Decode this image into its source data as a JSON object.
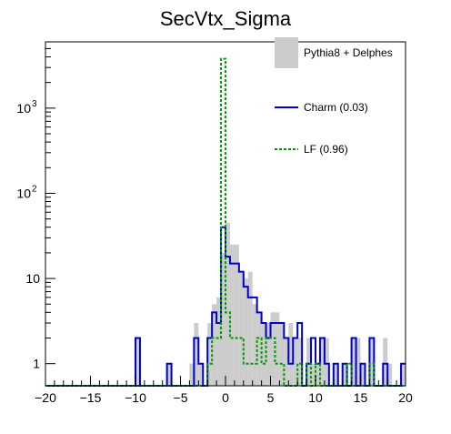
{
  "chart_data": {
    "type": "histogram",
    "title": "SecVtx_Sigma",
    "xlabel": "",
    "ylabel": "",
    "xlim": [
      -20,
      20
    ],
    "ylim": [
      0.55,
      6000
    ],
    "y_scale": "log",
    "x_ticks": [
      "−20",
      "−15",
      "−10",
      "−5",
      "0",
      "5",
      "10",
      "15",
      "20"
    ],
    "x_tick_values": [
      -20,
      -15,
      -10,
      -5,
      0,
      5,
      10,
      15,
      20
    ],
    "y_tick_values": [
      1,
      10,
      100,
      1000
    ],
    "y_tick_labels": [
      {
        "base": "1",
        "exp": ""
      },
      {
        "base": "10",
        "exp": ""
      },
      {
        "base": "10",
        "exp": "2"
      },
      {
        "base": "10",
        "exp": "3"
      }
    ],
    "grid": false,
    "legend_position": "top-right",
    "bin_width": 0.5,
    "series": [
      {
        "name": "Pythia8 + Delphes",
        "style": "filled",
        "color": "#cccccc",
        "bins": [
          [
            -10,
            2
          ],
          [
            -6.5,
            1
          ],
          [
            -4,
            1
          ],
          [
            -3.5,
            3
          ],
          [
            -3,
            1
          ],
          [
            -2,
            3
          ],
          [
            -1.5,
            5
          ],
          [
            -1,
            6
          ],
          [
            -0.5,
            20
          ],
          [
            0,
            45
          ],
          [
            0.5,
            25
          ],
          [
            1,
            25
          ],
          [
            1.5,
            12
          ],
          [
            2,
            10
          ],
          [
            2.5,
            12
          ],
          [
            3,
            5
          ],
          [
            3.5,
            4
          ],
          [
            4,
            3
          ],
          [
            4.5,
            3
          ],
          [
            5,
            4
          ],
          [
            5.5,
            4
          ],
          [
            6,
            3
          ],
          [
            6.5,
            2
          ],
          [
            7,
            3
          ],
          [
            7.5,
            2
          ],
          [
            8,
            2
          ],
          [
            9,
            2
          ],
          [
            9.5,
            1
          ],
          [
            10,
            1
          ],
          [
            10.5,
            2
          ],
          [
            11,
            2
          ],
          [
            12,
            1
          ],
          [
            13,
            1
          ],
          [
            14,
            2
          ],
          [
            14.5,
            2
          ],
          [
            15,
            1
          ],
          [
            16,
            2
          ],
          [
            17.5,
            2
          ],
          [
            18,
            1
          ],
          [
            19.5,
            1
          ]
        ]
      },
      {
        "name": "Charm (0.03)",
        "style": "line",
        "color": "#0000cc",
        "bins": [
          [
            -10,
            2
          ],
          [
            -6.5,
            1
          ],
          [
            -3.5,
            2
          ],
          [
            -3,
            1
          ],
          [
            -2,
            2
          ],
          [
            -1.5,
            4
          ],
          [
            -1,
            3
          ],
          [
            -0.5,
            40
          ],
          [
            0,
            18
          ],
          [
            0.5,
            15
          ],
          [
            1,
            15
          ],
          [
            1.5,
            12
          ],
          [
            2,
            8
          ],
          [
            2.5,
            6
          ],
          [
            3,
            6
          ],
          [
            3.5,
            4
          ],
          [
            4,
            3
          ],
          [
            4.5,
            2
          ],
          [
            5,
            3
          ],
          [
            5.5,
            3
          ],
          [
            6,
            3
          ],
          [
            6.5,
            2
          ],
          [
            7,
            1
          ],
          [
            7.5,
            2
          ],
          [
            8,
            3
          ],
          [
            9,
            1
          ],
          [
            9.5,
            2
          ],
          [
            10,
            1
          ],
          [
            10.5,
            2
          ],
          [
            11,
            1
          ],
          [
            12,
            1
          ],
          [
            13,
            1
          ],
          [
            14,
            2
          ],
          [
            15,
            1
          ],
          [
            16,
            2
          ],
          [
            17.5,
            1
          ],
          [
            19.5,
            1
          ]
        ]
      },
      {
        "name": "LF (0.96)",
        "style": "dashed",
        "color": "#009900",
        "bins": [
          [
            -2,
            1
          ],
          [
            -1.5,
            2
          ],
          [
            -1,
            2
          ],
          [
            -0.5,
            3800
          ],
          [
            0,
            4
          ],
          [
            0.5,
            2
          ],
          [
            1,
            2
          ],
          [
            1.5,
            2
          ],
          [
            2,
            1
          ],
          [
            2.5,
            1
          ],
          [
            3,
            1
          ],
          [
            3.5,
            2
          ],
          [
            4,
            1
          ],
          [
            4.5,
            2
          ],
          [
            5,
            2
          ],
          [
            5.5,
            1
          ],
          [
            6,
            1
          ],
          [
            8,
            1
          ],
          [
            9,
            1
          ],
          [
            10,
            1
          ],
          [
            13.5,
            1
          ],
          [
            16,
            1
          ]
        ]
      }
    ]
  }
}
